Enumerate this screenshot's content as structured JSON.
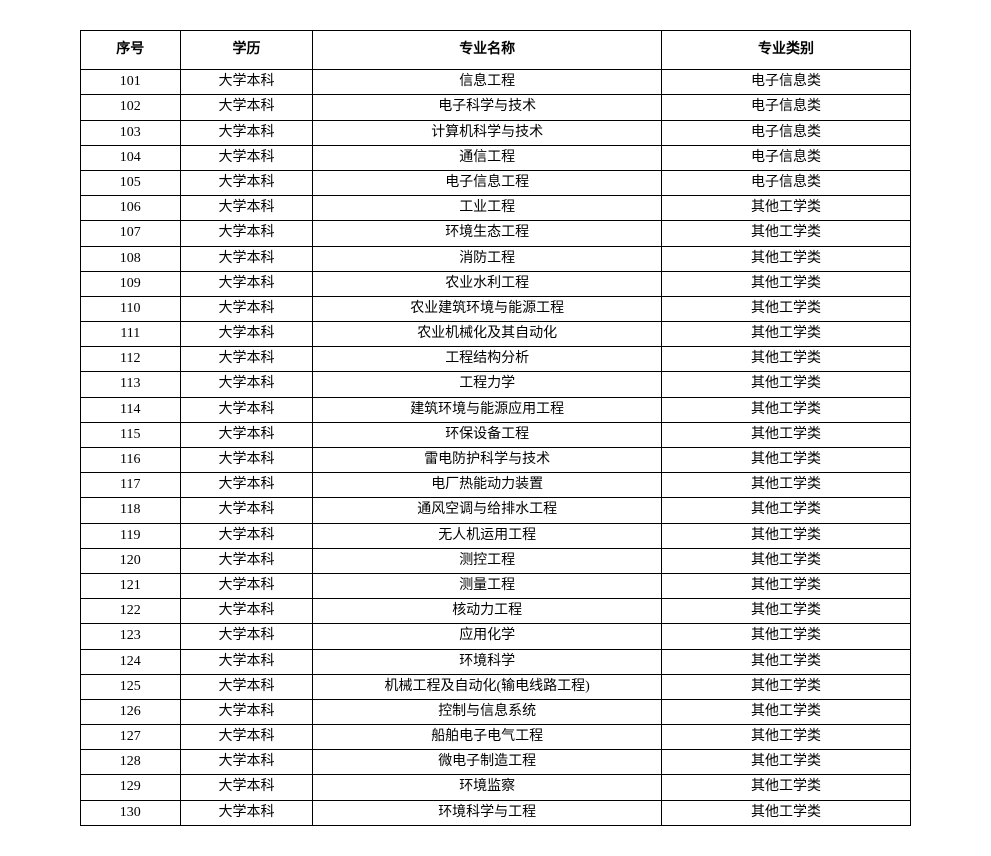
{
  "table": {
    "columns": [
      "序号",
      "学历",
      "专业名称",
      "专业类别"
    ],
    "rows": [
      [
        "101",
        "大学本科",
        "信息工程",
        "电子信息类"
      ],
      [
        "102",
        "大学本科",
        "电子科学与技术",
        "电子信息类"
      ],
      [
        "103",
        "大学本科",
        "计算机科学与技术",
        "电子信息类"
      ],
      [
        "104",
        "大学本科",
        "通信工程",
        "电子信息类"
      ],
      [
        "105",
        "大学本科",
        "电子信息工程",
        "电子信息类"
      ],
      [
        "106",
        "大学本科",
        "工业工程",
        "其他工学类"
      ],
      [
        "107",
        "大学本科",
        "环境生态工程",
        "其他工学类"
      ],
      [
        "108",
        "大学本科",
        "消防工程",
        "其他工学类"
      ],
      [
        "109",
        "大学本科",
        "农业水利工程",
        "其他工学类"
      ],
      [
        "110",
        "大学本科",
        "农业建筑环境与能源工程",
        "其他工学类"
      ],
      [
        "111",
        "大学本科",
        "农业机械化及其自动化",
        "其他工学类"
      ],
      [
        "112",
        "大学本科",
        "工程结构分析",
        "其他工学类"
      ],
      [
        "113",
        "大学本科",
        "工程力学",
        "其他工学类"
      ],
      [
        "114",
        "大学本科",
        "建筑环境与能源应用工程",
        "其他工学类"
      ],
      [
        "115",
        "大学本科",
        "环保设备工程",
        "其他工学类"
      ],
      [
        "116",
        "大学本科",
        "雷电防护科学与技术",
        "其他工学类"
      ],
      [
        "117",
        "大学本科",
        "电厂热能动力装置",
        "其他工学类"
      ],
      [
        "118",
        "大学本科",
        "通风空调与给排水工程",
        "其他工学类"
      ],
      [
        "119",
        "大学本科",
        "无人机运用工程",
        "其他工学类"
      ],
      [
        "120",
        "大学本科",
        "测控工程",
        "其他工学类"
      ],
      [
        "121",
        "大学本科",
        "测量工程",
        "其他工学类"
      ],
      [
        "122",
        "大学本科",
        "核动力工程",
        "其他工学类"
      ],
      [
        "123",
        "大学本科",
        "应用化学",
        "其他工学类"
      ],
      [
        "124",
        "大学本科",
        "环境科学",
        "其他工学类"
      ],
      [
        "125",
        "大学本科",
        "机械工程及自动化(输电线路工程)",
        "其他工学类"
      ],
      [
        "126",
        "大学本科",
        "控制与信息系统",
        "其他工学类"
      ],
      [
        "127",
        "大学本科",
        "船舶电子电气工程",
        "其他工学类"
      ],
      [
        "128",
        "大学本科",
        "微电子制造工程",
        "其他工学类"
      ],
      [
        "129",
        "大学本科",
        "环境监察",
        "其他工学类"
      ],
      [
        "130",
        "大学本科",
        "环境科学与工程",
        "其他工学类"
      ]
    ]
  }
}
